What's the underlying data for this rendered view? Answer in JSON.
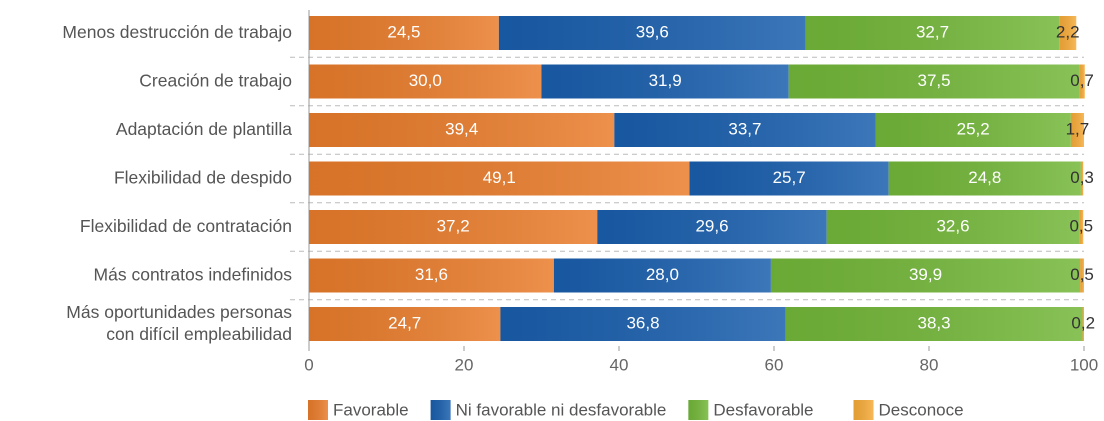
{
  "chart_data": {
    "type": "stacked_bar_horizontal",
    "categories": [
      "Menos destrucción de trabajo",
      "Creación de trabajo",
      "Adaptación de plantilla",
      "Flexibilidad de despido",
      "Flexibilidad de contratación",
      "Más contratos indefinidos",
      "Más oportunidades personas\ncon difícil empleabilidad"
    ],
    "series": [
      {
        "name": "Favorable",
        "color": "#ea7d2c",
        "values": [
          24.5,
          30.0,
          39.4,
          49.1,
          37.2,
          31.6,
          24.7
        ],
        "value_labels": [
          "24,5",
          "30,0",
          "39,4",
          "49,1",
          "37,2",
          "31,6",
          "24,7"
        ]
      },
      {
        "name": "Ni favorable ni desfavorable",
        "color": "#1a5fae",
        "values": [
          39.6,
          31.9,
          33.7,
          25.7,
          29.6,
          28.0,
          36.8
        ],
        "value_labels": [
          "39,6",
          "31,9",
          "33,7",
          "25,7",
          "29,6",
          "28,0",
          "36,8"
        ]
      },
      {
        "name": "Desfavorable",
        "color": "#74b83a",
        "values": [
          32.7,
          37.5,
          25.2,
          24.8,
          32.6,
          39.9,
          38.3
        ],
        "value_labels": [
          "32,7",
          "37,5",
          "25,2",
          "24,8",
          "32,6",
          "39,9",
          "38,3"
        ]
      },
      {
        "name": "Desconoce",
        "color": "#f7ac3a",
        "values": [
          2.2,
          0.7,
          1.7,
          0.3,
          0.5,
          0.5,
          0.2
        ],
        "value_labels": [
          "2,2",
          "0,7",
          "1,7",
          "0,3",
          "0,5",
          "0,5",
          "0,2"
        ]
      }
    ],
    "xlim": [
      0,
      100
    ],
    "xticks": [
      0,
      20,
      40,
      60,
      80,
      100
    ],
    "legend": "bottom"
  }
}
